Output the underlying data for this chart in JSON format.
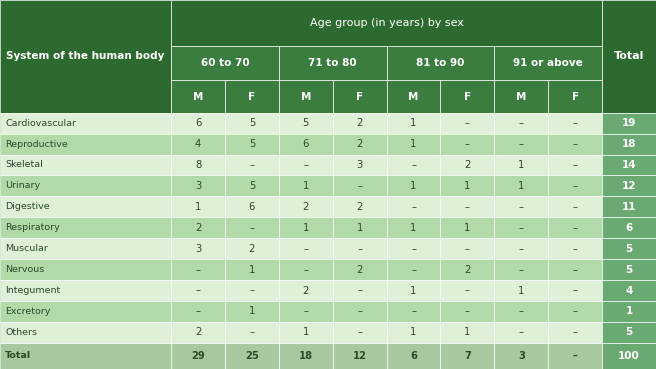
{
  "title": "Age group (in years) by sex",
  "rows": [
    [
      "Cardiovascular",
      "6",
      "5",
      "5",
      "2",
      "1",
      "–",
      "–",
      "–",
      "19"
    ],
    [
      "Reproductive",
      "4",
      "5",
      "6",
      "2",
      "1",
      "–",
      "–",
      "–",
      "18"
    ],
    [
      "Skeletal",
      "8",
      "–",
      "–",
      "3",
      "–",
      "2",
      "1",
      "–",
      "14"
    ],
    [
      "Urinary",
      "3",
      "5",
      "1",
      "–",
      "1",
      "1",
      "1",
      "–",
      "12"
    ],
    [
      "Digestive",
      "1",
      "6",
      "2",
      "2",
      "–",
      "–",
      "–",
      "–",
      "11"
    ],
    [
      "Respiratory",
      "2",
      "–",
      "1",
      "1",
      "1",
      "1",
      "–",
      "–",
      "6"
    ],
    [
      "Muscular",
      "3",
      "2",
      "–",
      "–",
      "–",
      "–",
      "–",
      "–",
      "5"
    ],
    [
      "Nervous",
      "–",
      "1",
      "–",
      "2",
      "–",
      "2",
      "–",
      "–",
      "5"
    ],
    [
      "Integument",
      "–",
      "–",
      "2",
      "–",
      "1",
      "–",
      "1",
      "–",
      "4"
    ],
    [
      "Excretory",
      "–",
      "1",
      "–",
      "–",
      "–",
      "–",
      "–",
      "–",
      "1"
    ],
    [
      "Others",
      "2",
      "–",
      "1",
      "–",
      "1",
      "1",
      "–",
      "–",
      "5"
    ],
    [
      "Total",
      "29",
      "25",
      "18",
      "12",
      "6",
      "7",
      "3",
      "–",
      "100"
    ]
  ],
  "color_header_dark": "#2d6a30",
  "color_header_medium": "#3a7d3e",
  "color_row_light": "#dff0d8",
  "color_row_medium": "#b2d9a8",
  "color_total_row": "#a8c8a0",
  "color_total_col": "#6aaa72",
  "color_total_col_header": "#5a9a62",
  "color_text_header": "#ffffff",
  "color_text_body": "#2d4a2d",
  "color_border": "#ffffff",
  "figsize": [
    6.56,
    3.69
  ],
  "dpi": 100
}
